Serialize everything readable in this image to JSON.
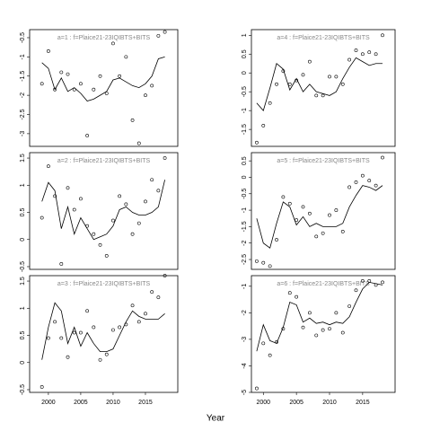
{
  "x_label": "Year",
  "chart_data": [
    {
      "type": "line",
      "title": "a=1 : f=Plaice21-23IQIBTS+BITS",
      "x": [
        1999,
        2000,
        2001,
        2002,
        2003,
        2004,
        2005,
        2006,
        2007,
        2008,
        2009,
        2010,
        2011,
        2012,
        2013,
        2014,
        2015,
        2016,
        2017,
        2018
      ],
      "line_values": [
        -1.15,
        -1.3,
        -1.85,
        -1.55,
        -1.9,
        -1.8,
        -1.95,
        -2.15,
        -2.1,
        -2.0,
        -1.9,
        -1.6,
        -1.55,
        -1.65,
        -1.75,
        -1.8,
        -1.7,
        -1.5,
        -1.05,
        -1.0
      ],
      "point_values": [
        -1.7,
        -0.85,
        -1.85,
        -1.4,
        -1.45,
        -1.85,
        -1.7,
        -3.05,
        -1.85,
        -1.5,
        -1.95,
        -0.65,
        -1.5,
        -1.0,
        -2.65,
        -3.25,
        -2.0,
        -1.75,
        -0.45,
        -0.35
      ],
      "xlim": [
        1997.1,
        2020
      ],
      "ylim": [
        -3.33,
        -0.29
      ],
      "yticks": [
        -0.5,
        -1.0,
        -1.5,
        -2.0,
        -2.5,
        -3.0
      ],
      "color": "#000000",
      "title_color": "#888888"
    },
    {
      "type": "line",
      "title": "a=2 : f=Plaice21-23IQIBTS+BITS",
      "x": [
        1999,
        2000,
        2001,
        2002,
        2003,
        2004,
        2005,
        2006,
        2007,
        2008,
        2009,
        2010,
        2011,
        2012,
        2013,
        2014,
        2015,
        2016,
        2017,
        2018
      ],
      "line_values": [
        0.7,
        1.05,
        0.9,
        0.2,
        0.6,
        0.1,
        0.4,
        0.2,
        0.0,
        0.05,
        0.1,
        0.25,
        0.55,
        0.6,
        0.5,
        0.45,
        0.45,
        0.5,
        0.6,
        1.1
      ],
      "point_values": [
        0.4,
        1.35,
        0.8,
        -0.45,
        0.95,
        0.55,
        0.75,
        0.25,
        0.1,
        -0.1,
        -0.3,
        0.35,
        0.8,
        0.65,
        0.1,
        0.3,
        0.7,
        1.1,
        0.9,
        1.5
      ],
      "xlim": [
        1997.1,
        2020
      ],
      "ylim": [
        -0.55,
        1.6
      ],
      "yticks": [
        -0.5,
        0.0,
        0.5,
        1.0,
        1.5
      ],
      "color": "#000000",
      "title_color": "#888888"
    },
    {
      "type": "line",
      "title": "a=3 : f=Plaice21-23IQIBTS+BITS",
      "x": [
        1999,
        2000,
        2001,
        2002,
        2003,
        2004,
        2005,
        2006,
        2007,
        2008,
        2009,
        2010,
        2011,
        2012,
        2013,
        2014,
        2015,
        2016,
        2017,
        2018
      ],
      "line_values": [
        0.05,
        0.65,
        1.1,
        0.95,
        0.35,
        0.65,
        0.3,
        0.55,
        0.35,
        0.2,
        0.2,
        0.25,
        0.5,
        0.75,
        0.95,
        0.85,
        0.8,
        0.8,
        0.8,
        0.9
      ],
      "point_values": [
        -0.45,
        0.45,
        0.75,
        0.45,
        0.1,
        0.55,
        0.55,
        0.95,
        0.65,
        0.05,
        0.15,
        0.6,
        0.65,
        0.7,
        1.05,
        0.75,
        0.9,
        1.3,
        1.2,
        1.6
      ],
      "xlim": [
        1997.1,
        2020
      ],
      "ylim": [
        -0.55,
        1.6
      ],
      "yticks": [
        -0.5,
        0.0,
        0.5,
        1.0,
        1.5
      ],
      "xticks": [
        2000,
        2005,
        2010,
        2015
      ],
      "color": "#000000",
      "title_color": "#888888"
    },
    {
      "type": "line",
      "title": "a=4 : f=Plaice21-23IQIBTS+BITS",
      "x": [
        1999,
        2000,
        2001,
        2002,
        2003,
        2004,
        2005,
        2006,
        2007,
        2008,
        2009,
        2010,
        2011,
        2012,
        2013,
        2014,
        2015,
        2016,
        2017,
        2018
      ],
      "line_values": [
        -0.8,
        -1.0,
        -0.4,
        0.25,
        0.1,
        -0.45,
        -0.15,
        -0.5,
        -0.3,
        -0.5,
        -0.55,
        -0.6,
        -0.5,
        -0.15,
        0.15,
        0.4,
        0.3,
        0.2,
        0.25,
        0.25
      ],
      "point_values": [
        -1.85,
        -1.4,
        -0.8,
        -0.3,
        0.05,
        -0.3,
        -0.2,
        -0.05,
        0.3,
        -0.6,
        -0.6,
        -0.1,
        -0.1,
        -0.3,
        0.35,
        0.6,
        0.5,
        0.55,
        0.5,
        1.0
      ],
      "xlim": [
        1998.2,
        2019.9
      ],
      "ylim": [
        -1.95,
        1.15
      ],
      "yticks": [
        1.0,
        0.5,
        0.0,
        -0.5,
        -1.0,
        -1.5
      ],
      "color": "#000000",
      "title_color": "#888888"
    },
    {
      "type": "line",
      "title": "a=5 : f=Plaice21-23IQIBTS+BITS",
      "x": [
        1999,
        2000,
        2001,
        2002,
        2003,
        2004,
        2005,
        2006,
        2007,
        2008,
        2009,
        2010,
        2011,
        2012,
        2013,
        2014,
        2015,
        2016,
        2017,
        2018
      ],
      "line_values": [
        -1.25,
        -2.0,
        -2.15,
        -1.4,
        -0.75,
        -0.9,
        -1.45,
        -1.2,
        -1.5,
        -1.4,
        -1.5,
        -1.5,
        -1.5,
        -1.4,
        -0.9,
        -0.55,
        -0.25,
        -0.3,
        -0.4,
        -0.25
      ],
      "point_values": [
        -2.55,
        -2.6,
        -2.7,
        -1.9,
        -0.6,
        -0.8,
        -1.3,
        -0.9,
        -1.1,
        -1.8,
        -1.7,
        -1.15,
        -1.0,
        -1.65,
        -0.3,
        -0.15,
        0.05,
        -0.1,
        -0.25,
        0.6
      ],
      "xlim": [
        1998.2,
        2019.9
      ],
      "ylim": [
        -2.8,
        0.75
      ],
      "yticks": [
        0.5,
        0.0,
        -0.5,
        -1.0,
        -1.5,
        -2.0,
        -2.5
      ],
      "color": "#000000",
      "title_color": "#888888"
    },
    {
      "type": "line",
      "title": "a=6 : f=Plaice21-23IQIBTS+BITS",
      "x": [
        1999,
        2000,
        2001,
        2002,
        2003,
        2004,
        2005,
        2006,
        2007,
        2008,
        2009,
        2010,
        2011,
        2012,
        2013,
        2014,
        2015,
        2016,
        2017,
        2018
      ],
      "line_values": [
        -3.45,
        -2.45,
        -3.05,
        -3.15,
        -2.55,
        -1.6,
        -1.7,
        -2.35,
        -2.2,
        -2.4,
        -2.35,
        -2.45,
        -2.35,
        -2.4,
        -2.15,
        -1.6,
        -1.1,
        -0.85,
        -0.9,
        -0.95
      ],
      "point_values": [
        -4.85,
        -3.15,
        -3.6,
        -3.1,
        -2.6,
        -1.25,
        -1.4,
        -2.55,
        -2.0,
        -2.85,
        -2.65,
        -2.6,
        -2.0,
        -2.75,
        -1.75,
        -1.15,
        -0.8,
        -0.8,
        -0.95,
        -0.85
      ],
      "xlim": [
        1998.2,
        2019.9
      ],
      "ylim": [
        -5.0,
        -0.6
      ],
      "yticks": [
        -1,
        -2,
        -3,
        -4,
        -5
      ],
      "xticks": [
        2000,
        2005,
        2010,
        2015
      ],
      "color": "#000000",
      "title_color": "#888888"
    }
  ]
}
